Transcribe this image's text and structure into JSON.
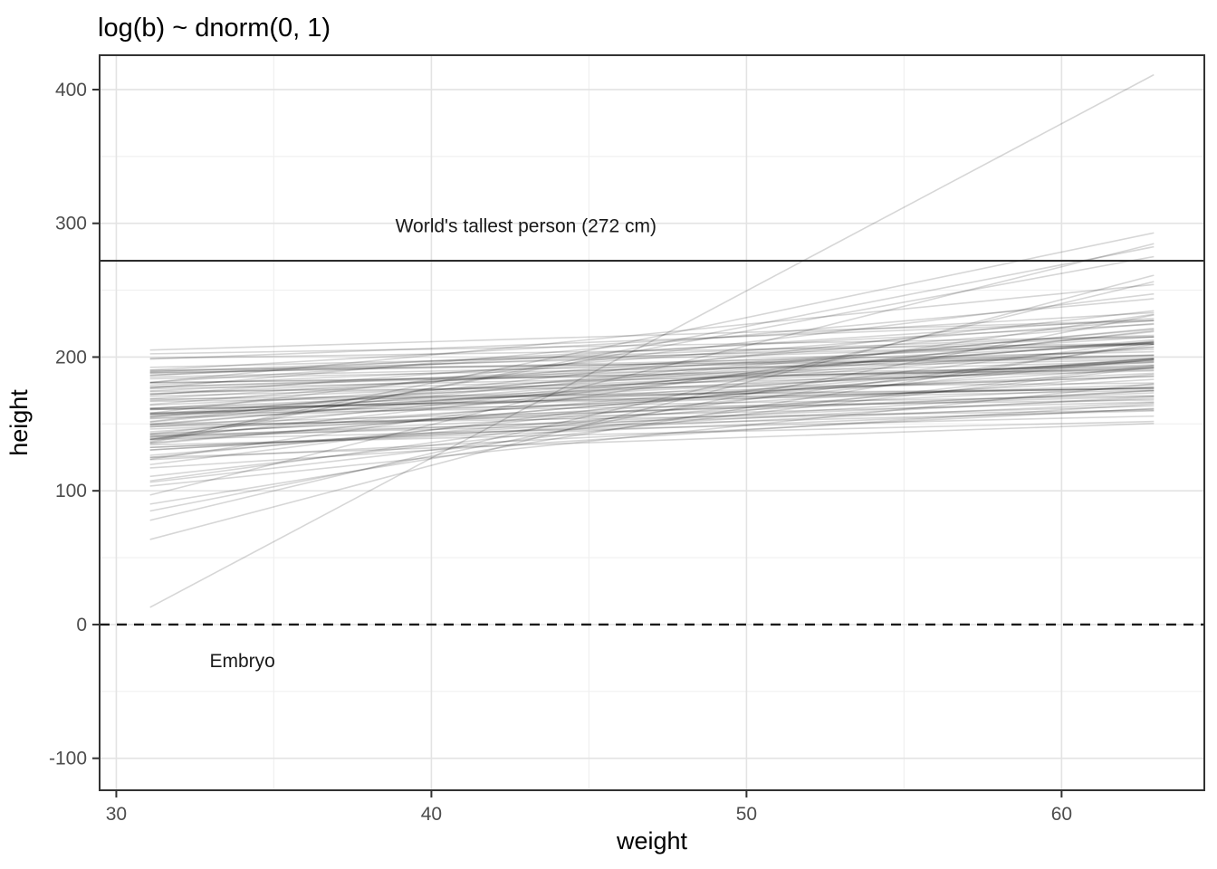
{
  "title": "log(b) ~ dnorm(0, 1)",
  "colors": {
    "background": "#ffffff",
    "grid_major": "#e3e3e3",
    "grid_minor": "#f0f0f0",
    "panel_border": "#333333",
    "tick_mark": "#333333",
    "tick_label": "#4d4d4d",
    "title_text": "#000000",
    "annotation_line": "#1a1a1a",
    "prior_line": "#000000"
  },
  "chart_data": {
    "type": "line",
    "title": "log(b) ~ dnorm(0, 1)",
    "xlabel": "weight",
    "ylabel": "height",
    "xlim": [
      29.47,
      64.53
    ],
    "ylim": [
      -123.9,
      425.7
    ],
    "x_ticks": [
      30,
      40,
      50,
      60
    ],
    "y_ticks": [
      -100,
      0,
      100,
      200,
      300,
      400
    ],
    "x_minor": [
      35,
      45,
      55
    ],
    "y_minor": [
      -50,
      50,
      150,
      250,
      350
    ],
    "grid": true,
    "legend": "none",
    "line_x_start": 31.07,
    "line_x_end": 62.93,
    "pivot_weight": 45,
    "line_model": "height = a + b * (weight - 45), b = exp(log_b), log_b ~ dnorm(0, 1), a ~ dnorm(178, 20)",
    "line_opacity": 0.16,
    "annotations": [
      {
        "type": "hline",
        "y": 272,
        "style": "solid",
        "label": "World's tallest person (272 cm)",
        "label_x": 43,
        "label_y": 298
      },
      {
        "type": "hline",
        "y": 0,
        "style": "dashed",
        "label": "Embryo",
        "label_x": 34,
        "label_y": -27
      }
    ],
    "lines": [
      [
        187,
        12.5
      ],
      [
        205,
        4.9
      ],
      [
        198,
        4.3
      ],
      [
        156,
        5.6
      ],
      [
        149,
        4.6
      ],
      [
        143,
        3.8
      ],
      [
        152,
        3.2
      ],
      [
        147,
        2.6
      ],
      [
        160,
        2.9
      ],
      [
        171,
        3.4
      ],
      [
        182,
        2.2
      ],
      [
        191,
        1.9
      ],
      [
        178,
        1.0
      ],
      [
        165,
        0.8
      ],
      [
        174,
        1.3
      ],
      [
        186,
        0.6
      ],
      [
        199,
        0.9
      ],
      [
        158,
        1.1
      ],
      [
        168,
        0.5
      ],
      [
        208,
        0.4
      ],
      [
        215,
        0.7
      ],
      [
        138,
        1.5
      ],
      [
        145,
        0.9
      ],
      [
        154,
        0.35
      ],
      [
        163,
        2.0
      ],
      [
        172,
        0.25
      ],
      [
        181,
        1.7
      ],
      [
        190,
        0.45
      ],
      [
        203,
        1.2
      ],
      [
        176,
        2.4
      ],
      [
        169,
        1.05
      ],
      [
        185,
        0.3
      ],
      [
        150,
        1.4
      ],
      [
        142,
        0.55
      ],
      [
        197,
        2.8
      ],
      [
        188,
        0.75
      ],
      [
        177,
        0.2
      ],
      [
        166,
        1.85
      ],
      [
        159,
        0.65
      ],
      [
        173,
        1.15
      ],
      [
        184,
        2.05
      ],
      [
        192,
        0.5
      ],
      [
        201,
        0.85
      ],
      [
        148,
        1.25
      ],
      [
        157,
        2.3
      ],
      [
        164,
        0.4
      ],
      [
        175,
        0.95
      ],
      [
        183,
        1.55
      ],
      [
        194,
        0.28
      ],
      [
        206,
        2.1
      ],
      [
        151,
        0.7
      ],
      [
        144,
        2.7
      ],
      [
        162,
        0.33
      ],
      [
        170,
        1.6
      ],
      [
        179,
        0.6
      ],
      [
        187,
        1.05
      ],
      [
        195,
        0.5
      ],
      [
        209,
        1.35
      ],
      [
        136,
        0.8
      ],
      [
        153,
        1.9
      ],
      [
        167,
        0.45
      ],
      [
        174,
        2.55
      ],
      [
        180,
        0.9
      ],
      [
        189,
        1.45
      ],
      [
        198,
        0.65
      ],
      [
        146,
        0.55
      ],
      [
        155,
        1.1
      ],
      [
        200,
        4.6
      ],
      [
        172,
        0.75
      ],
      [
        178,
        1.65
      ],
      [
        186,
        0.38
      ],
      [
        193,
        1.0
      ],
      [
        200,
        0.55
      ],
      [
        211,
        0.9
      ],
      [
        140,
        1.2
      ],
      [
        149,
        0.6
      ],
      [
        158,
        0.85
      ],
      [
        165,
        1.5
      ],
      [
        171,
        0.3
      ],
      [
        177,
        2.0
      ],
      [
        183,
        0.48
      ],
      [
        190,
        1.1
      ],
      [
        196,
        1.75
      ],
      [
        204,
        0.35
      ],
      [
        137,
        2.4
      ],
      [
        152,
        0.95
      ],
      [
        160,
        1.3
      ],
      [
        168,
        0.52
      ],
      [
        175,
        1.8
      ],
      [
        182,
        0.68
      ],
      [
        188,
        2.6
      ],
      [
        194,
        0.42
      ],
      [
        202,
        1.5
      ],
      [
        213,
        2.3
      ],
      [
        150,
        6.2
      ],
      [
        147,
        1.05
      ],
      [
        156,
        0.58
      ],
      [
        163,
        1.95
      ],
      [
        170,
        0.88
      ],
      [
        179,
        5.9
      ]
    ]
  }
}
